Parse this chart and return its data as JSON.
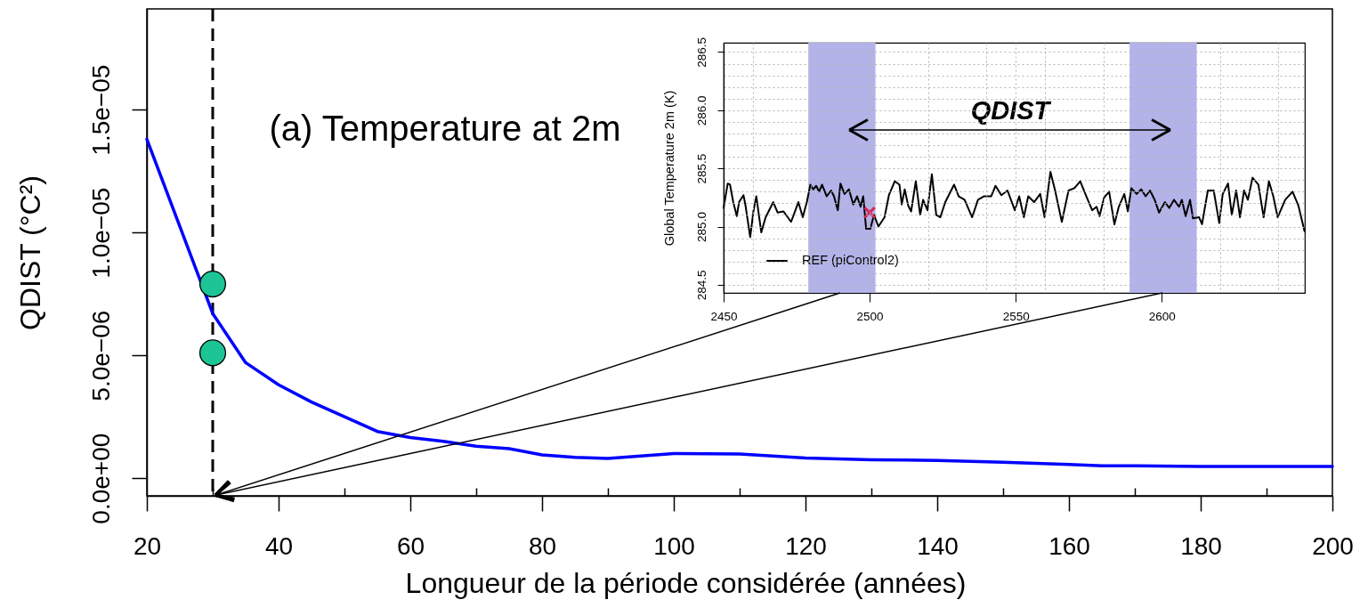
{
  "chart_data": [
    {
      "type": "line",
      "xlabel": "Longueur de la période considérée (années)",
      "ylabel": "QDIST (°C²)",
      "annotations": [
        "(a) Temperature at 2m"
      ],
      "xlim": [
        20,
        200
      ],
      "ylim": [
        -7.2e-07,
        1.91e-05
      ],
      "xticks": [
        20,
        {
          "value": 30,
          "label": null
        },
        40,
        {
          "value": 50,
          "label": null
        },
        60,
        {
          "value": 70,
          "label": null
        },
        80,
        {
          "value": 90,
          "label": null
        },
        100,
        {
          "value": 110,
          "label": null
        },
        120,
        {
          "value": 130,
          "label": null
        },
        140,
        {
          "value": 150,
          "label": null
        },
        160,
        {
          "value": 170,
          "label": null
        },
        180,
        {
          "value": 190,
          "label": null
        },
        200
      ],
      "yticks": [
        {
          "value": 0,
          "label": "0.0e+00"
        },
        {
          "value": 5e-06,
          "label": "5.0e−06"
        },
        {
          "value": 1e-05,
          "label": "1.0e−05"
        },
        {
          "value": 1.5e-05,
          "label": "1.5e−05"
        }
      ],
      "series": [
        {
          "type": "line",
          "color": "#0000ff",
          "x": [
            20,
            30,
            35,
            40,
            45,
            50,
            55,
            60,
            65,
            70,
            75,
            80,
            85,
            90,
            95,
            100,
            110,
            120,
            130,
            140,
            150,
            160,
            165,
            170,
            180,
            190,
            200
          ],
          "values": [
            1.38e-05,
            6.7e-06,
            4.7e-06,
            3.8e-06,
            3.1e-06,
            2.5e-06,
            1.9e-06,
            1.65e-06,
            1.5e-06,
            1.3e-06,
            1.2e-06,
            9.5e-07,
            8.5e-07,
            8e-07,
            9e-07,
            1e-06,
            9.8e-07,
            8.2e-07,
            7.5e-07,
            7.2e-07,
            6.5e-07,
            5.6e-07,
            5e-07,
            5e-07,
            4.8e-07,
            4.8e-07,
            4.8e-07
          ]
        },
        {
          "type": "scatter",
          "marker": "circle",
          "color": "#1cc496",
          "x": [
            30,
            30
          ],
          "values": [
            7.9e-06,
            5.1e-06
          ]
        }
      ],
      "ref_lines": [
        {
          "axis": "x",
          "value": 30,
          "color": "#000000",
          "line_style": "dashed"
        }
      ]
    },
    {
      "type": "line",
      "ylabel": "Global Temperature 2m (K)",
      "annotations": [
        "QDIST"
      ],
      "xlim": [
        2450,
        2649
      ],
      "ylim": [
        284.43,
        286.58
      ],
      "xticks": [
        2450,
        {
          "value": 2460,
          "label": null
        },
        {
          "value": 2480,
          "label": null
        },
        2500,
        {
          "value": 2520,
          "label": null
        },
        {
          "value": 2540,
          "label": null
        },
        2550,
        {
          "value": 2560,
          "label": null
        },
        {
          "value": 2580,
          "label": null
        },
        2600,
        {
          "value": 2620,
          "label": null
        },
        {
          "value": 2640,
          "label": null
        }
      ],
      "yticks": [
        284.5,
        {
          "value": 284.6,
          "label": null
        },
        {
          "value": 284.7,
          "label": null
        },
        {
          "value": 284.8,
          "label": null
        },
        {
          "value": 284.9,
          "label": null
        },
        {
          "value": 285,
          "label": "285.0"
        },
        {
          "value": 285.1,
          "label": null
        },
        {
          "value": 285.2,
          "label": null
        },
        {
          "value": 285.3,
          "label": null
        },
        {
          "value": 285.4,
          "label": null
        },
        285.5,
        {
          "value": 285.6,
          "label": null
        },
        {
          "value": 285.7,
          "label": null
        },
        {
          "value": 285.8,
          "label": null
        },
        {
          "value": 285.9,
          "label": null
        },
        {
          "value": 286,
          "label": "286.0"
        },
        {
          "value": 286.1,
          "label": null
        },
        {
          "value": 286.2,
          "label": null
        },
        {
          "value": 286.3,
          "label": null
        },
        {
          "value": 286.4,
          "label": null
        },
        286.5
      ],
      "grid": true,
      "legend": "bottom left",
      "bands": [
        {
          "axis": "x",
          "from": 2479,
          "to": 2502,
          "color": "#b3b3e9"
        },
        {
          "axis": "x",
          "from": 2589,
          "to": 2612,
          "color": "#b3b3e9"
        }
      ],
      "series": [
        {
          "type": "line",
          "name": "REF (piControl2)",
          "color": "#000000",
          "x": [
            2450,
            2451.4,
            2452.2,
            2453.3,
            2454.5,
            2455.3,
            2456.8,
            2457.5,
            2459.1,
            2460.2,
            2461.2,
            2462.9,
            2464.4,
            2467,
            2468.5,
            2470.5,
            2473.1,
            2475.6,
            2477.1,
            2478.5,
            2479.7,
            2480.7,
            2481.7,
            2482.7,
            2483.7,
            2485.3,
            2486.8,
            2487.8,
            2489.1,
            2490,
            2491.4,
            2492.9,
            2494.4,
            2495.7,
            2496.9,
            2497.8,
            2498.8,
            2500.2,
            2501.5,
            2503,
            2505.1,
            2506.6,
            2508.6,
            2510.2,
            2511,
            2512,
            2513.2,
            2514.2,
            2515.8,
            2517.3,
            2518.3,
            2519.8,
            2521.3,
            2522.8,
            2524.2,
            2525.9,
            2528.9,
            2530.5,
            2532.5,
            2535.1,
            2537.1,
            2539.1,
            2541.6,
            2543.1,
            2545.1,
            2547.2,
            2549.7,
            2551.2,
            2552.8,
            2554.3,
            2556.3,
            2558.4,
            2559.9,
            2561.9,
            2563.5,
            2565.8,
            2568.1,
            2570.1,
            2572.1,
            2574.2,
            2576.2,
            2577.7,
            2578.7,
            2580.3,
            2582,
            2583.8,
            2585.3,
            2587.2,
            2588.4,
            2589.6,
            2591.4,
            2593,
            2594.5,
            2596,
            2597.6,
            2599.1,
            2601.1,
            2602.6,
            2604.2,
            2605.9,
            2606.9,
            2608.2,
            2609.7,
            2610.7,
            2612.8,
            2613.8,
            2615.8,
            2617.8,
            2619.7,
            2620.9,
            2622.7,
            2624,
            2625.5,
            2626.8,
            2628.2,
            2629.5,
            2631.1,
            2633.1,
            2634.9,
            2636.7,
            2638.2,
            2639.7,
            2642.3,
            2644.8,
            2646.8,
            2648.9
          ],
          "values": [
            285.16,
            285.37,
            285.36,
            285.21,
            285.09,
            285.21,
            285.27,
            285.18,
            284.91,
            285.13,
            285.26,
            284.95,
            285.08,
            285.21,
            285.12,
            285.13,
            285.04,
            285.21,
            285.08,
            285.21,
            285.36,
            285.32,
            285.35,
            285.3,
            285.36,
            285.26,
            285.31,
            285.26,
            285.14,
            285.37,
            285.28,
            285.32,
            285.19,
            285.26,
            285.17,
            285.26,
            284.98,
            284.98,
            285.1,
            285,
            285.08,
            285.27,
            285.39,
            285.36,
            285.19,
            285.32,
            285.18,
            285.13,
            285.39,
            285.1,
            285.23,
            285.14,
            285.45,
            285.1,
            285.08,
            285.21,
            285.36,
            285.26,
            285.23,
            285.08,
            285.23,
            285.26,
            285.26,
            285.35,
            285.27,
            285.31,
            285.14,
            285.26,
            285.08,
            285.26,
            285.21,
            285.28,
            285.08,
            285.47,
            285.31,
            285.04,
            285.31,
            285.33,
            285.39,
            285.26,
            285.14,
            285.17,
            285.09,
            285.25,
            285.3,
            285.02,
            285.17,
            285.28,
            285.13,
            285.33,
            285.28,
            285.32,
            285.26,
            285.31,
            285.23,
            285.12,
            285.21,
            285.16,
            285.23,
            285.17,
            285.23,
            285.09,
            285.23,
            285.07,
            285.08,
            285.02,
            285.31,
            285.31,
            285.03,
            285.28,
            285.37,
            285.1,
            285.31,
            285.08,
            285.31,
            285.23,
            285.42,
            285.36,
            285.08,
            285.39,
            285.26,
            285.08,
            285.23,
            285.3,
            285.18,
            284.96
          ]
        },
        {
          "type": "scatter",
          "marker": "cross",
          "color": "#d6285a",
          "x": [
            2500
          ],
          "values": [
            285.12
          ]
        }
      ]
    }
  ]
}
